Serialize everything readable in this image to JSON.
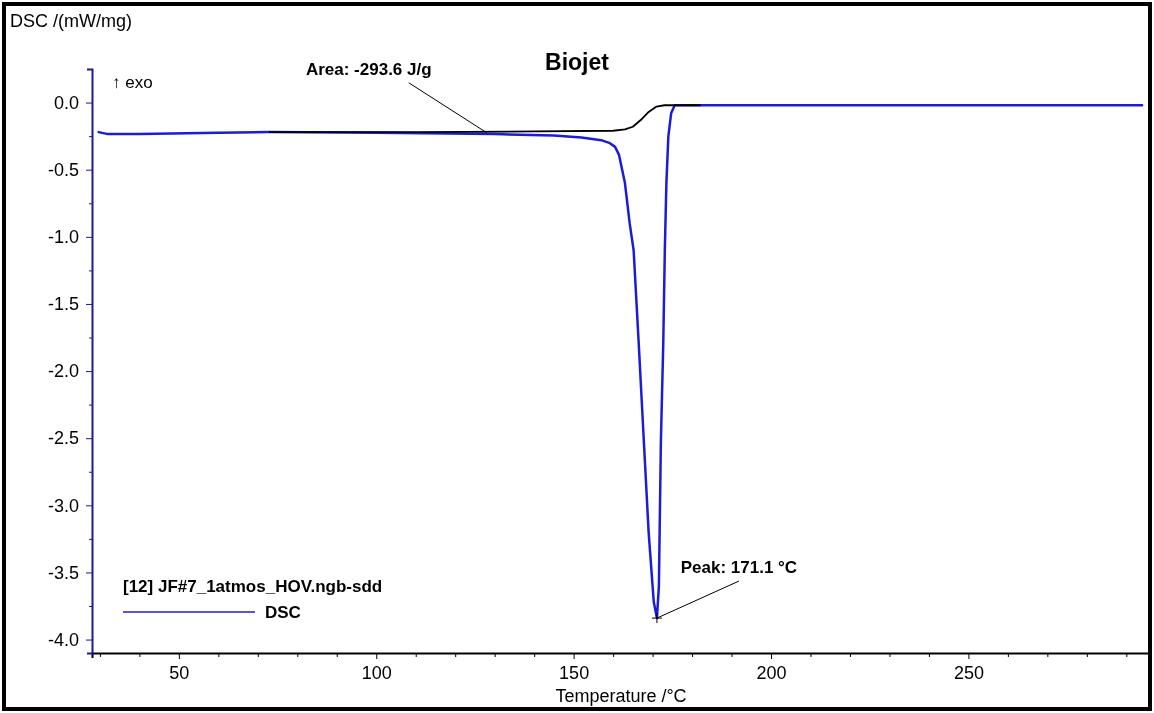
{
  "chart_data": {
    "type": "line",
    "title": "Biojet",
    "xlabel": "Temperature /°C",
    "ylabel": "DSC /(mW/mg)",
    "legend_title": "[12] JF#7_1atmos_HOV.ngb-sdd",
    "legend": "bottom left",
    "grid": false,
    "line_style": "solid",
    "xlim": [
      28,
      296
    ],
    "ylim": [
      -4.1,
      0.25
    ],
    "xticks": [
      {
        "value": 30,
        "label": null
      },
      {
        "value": 40,
        "label": null
      },
      50,
      {
        "value": 60,
        "label": null
      },
      {
        "value": 70,
        "label": null
      },
      {
        "value": 80,
        "label": null
      },
      {
        "value": 90,
        "label": null
      },
      100,
      {
        "value": 110,
        "label": null
      },
      {
        "value": 120,
        "label": null
      },
      {
        "value": 130,
        "label": null
      },
      {
        "value": 140,
        "label": null
      },
      150,
      {
        "value": 160,
        "label": null
      },
      {
        "value": 170,
        "label": null
      },
      {
        "value": 180,
        "label": null
      },
      {
        "value": 190,
        "label": null
      },
      200,
      {
        "value": 210,
        "label": null
      },
      {
        "value": 220,
        "label": null
      },
      {
        "value": 230,
        "label": null
      },
      {
        "value": 240,
        "label": null
      },
      250,
      {
        "value": 260,
        "label": null
      },
      {
        "value": 270,
        "label": null
      },
      {
        "value": 280,
        "label": null
      },
      {
        "value": 290,
        "label": null
      }
    ],
    "yticks": [
      {
        "value": -4,
        "label": "-4.0"
      },
      {
        "value": -3.75,
        "label": null
      },
      {
        "value": -3.5,
        "label": "-3.5"
      },
      {
        "value": -3.25,
        "label": null
      },
      {
        "value": -3,
        "label": "-3.0"
      },
      {
        "value": -2.75,
        "label": null
      },
      {
        "value": -2.5,
        "label": "-2.5"
      },
      {
        "value": -2.25,
        "label": null
      },
      {
        "value": -2,
        "label": "-2.0"
      },
      {
        "value": -1.75,
        "label": null
      },
      {
        "value": -1.5,
        "label": "-1.5"
      },
      {
        "value": -1.25,
        "label": null
      },
      {
        "value": -1,
        "label": "-1.0"
      },
      {
        "value": -0.75,
        "label": null
      },
      {
        "value": -0.5,
        "label": "-0.5"
      },
      {
        "value": -0.25,
        "label": null
      },
      {
        "value": 0,
        "label": "0.0"
      }
    ],
    "series": [
      {
        "name": "DSC",
        "color": "#1c1cd8",
        "x": [
          29.7,
          32,
          40,
          60,
          73,
          100,
          130,
          145,
          152,
          157,
          159,
          160.5,
          161.5,
          163,
          164.2,
          165.2,
          166.5,
          167.8,
          169,
          170.3,
          171.1,
          171.6,
          172.1,
          172.7,
          173.1,
          173.5,
          174,
          174.7,
          175.6,
          182,
          200,
          250,
          294
        ],
        "values": [
          -0.22,
          -0.235,
          -0.235,
          -0.225,
          -0.22,
          -0.225,
          -0.235,
          -0.245,
          -0.26,
          -0.28,
          -0.3,
          -0.33,
          -0.39,
          -0.6,
          -0.9,
          -1.1,
          -1.8,
          -2.53,
          -3.2,
          -3.72,
          -3.84,
          -3.6,
          -2.53,
          -1.8,
          -1.1,
          -0.6,
          -0.25,
          -0.08,
          -0.02,
          -0.02,
          -0.02,
          -0.02,
          -0.02
        ]
      },
      {
        "color": "#000000",
        "x": [
          73,
          110,
          140,
          160,
          163,
          165,
          167,
          169,
          171,
          173,
          182
        ],
        "values": [
          -0.22,
          -0.22,
          -0.215,
          -0.21,
          -0.2,
          -0.18,
          -0.13,
          -0.07,
          -0.03,
          -0.02,
          -0.02
        ]
      }
    ],
    "annotations": [
      "↑ exo",
      {
        "text": "Area: -293.6 J/g",
        "x": 128,
        "y": -0.225
      },
      {
        "text": "Peak: 171.1 °C",
        "x": 171.1,
        "y": -3.84
      }
    ]
  }
}
